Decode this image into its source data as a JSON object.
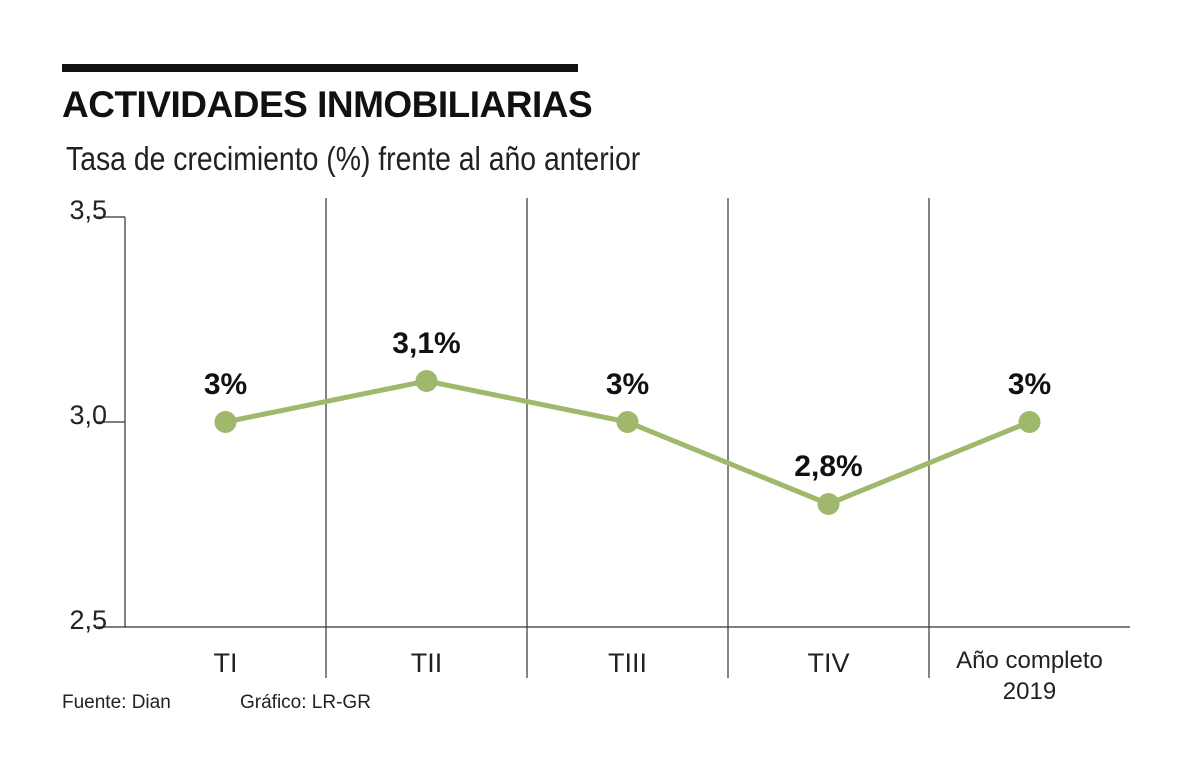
{
  "title": "ACTIVIDADES INMOBILIARIAS",
  "subtitle": "Tasa de crecimiento (%) frente al año anterior",
  "footer": {
    "source": "Fuente: Dian",
    "graphic": "Gráfico: LR-GR"
  },
  "chart_data": {
    "type": "line",
    "categories": [
      "TI",
      "TII",
      "TIII",
      "TIV",
      "Año completo 2019"
    ],
    "category_lines": [
      [
        "TI"
      ],
      [
        "TII"
      ],
      [
        "TIII"
      ],
      [
        "TIV"
      ],
      [
        "Año completo",
        "2019"
      ]
    ],
    "values": [
      3.0,
      3.1,
      3.0,
      2.8,
      3.0
    ],
    "data_labels": [
      "3%",
      "3,1%",
      "3%",
      "2,8%",
      "3%"
    ],
    "yticks": [
      2.5,
      3.0,
      3.5
    ],
    "ytick_labels": [
      "2,5",
      "3,0",
      "3,5"
    ],
    "ylim": [
      2.5,
      3.5
    ],
    "grid": "vertical separators",
    "line_color": "#9fb86c",
    "marker_color": "#9fb86c"
  }
}
